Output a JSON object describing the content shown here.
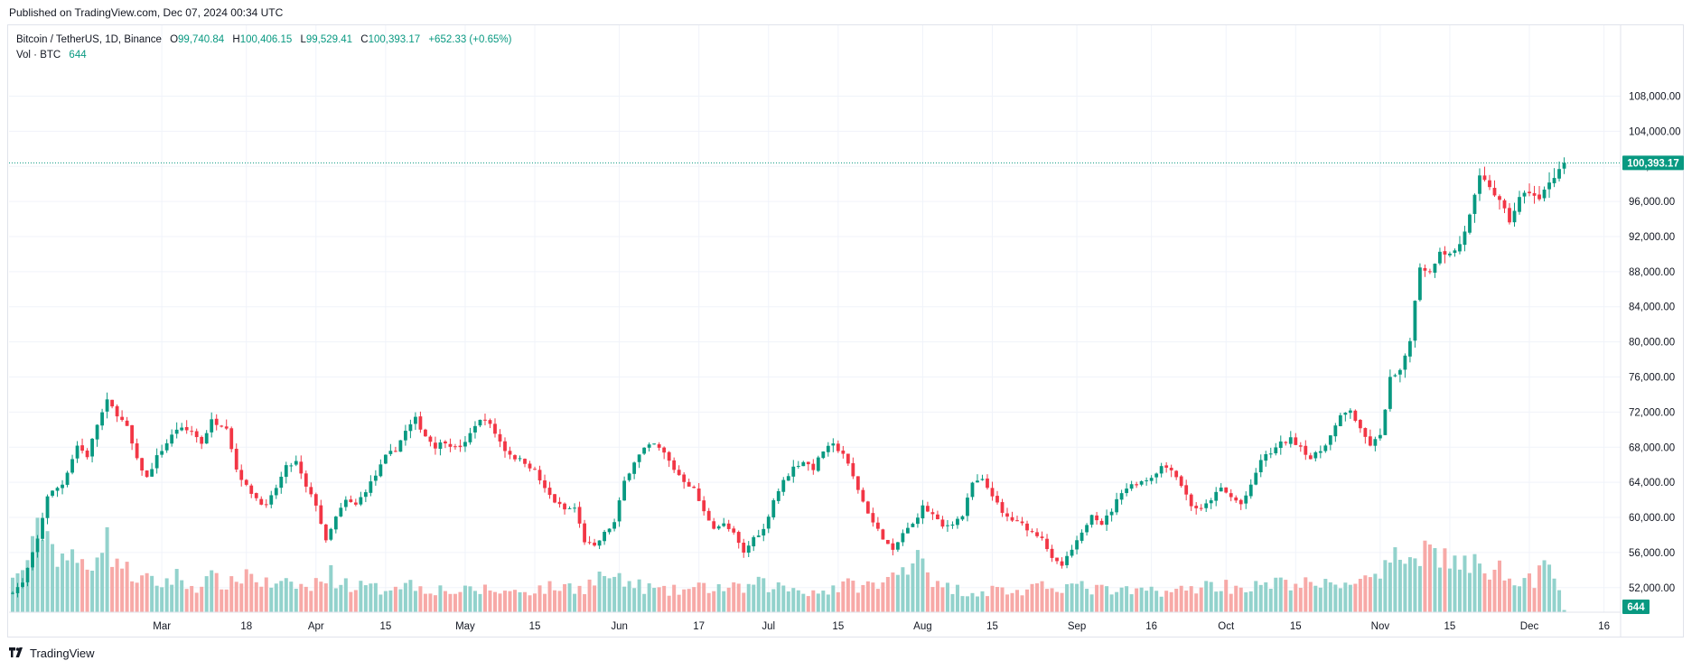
{
  "header": {
    "published": "Published on TradingView.com, Dec 07, 2024 00:34 UTC"
  },
  "legend": {
    "symbol": "Bitcoin / TetherUS, 1D, Binance",
    "open_label": "O",
    "open": "99,740.84",
    "high_label": "H",
    "high": "100,406.15",
    "low_label": "L",
    "low": "99,529.41",
    "close_label": "C",
    "close": "100,393.17",
    "change": "+652.33 (+0.65%)",
    "vol_label": "Vol · BTC",
    "vol": "644"
  },
  "footer": {
    "logo_icon": "tradingview-logo-icon",
    "brand": "TradingView"
  },
  "colors": {
    "up": "#089981",
    "down": "#f23645",
    "vol_up": "#92d2cc",
    "vol_down": "#f7a9a7",
    "grid": "#f0f3fa",
    "axis_text": "#131722"
  },
  "chart_data": {
    "type": "candlestick",
    "symbol": "BTCUSDT",
    "interval": "1D",
    "price_axis": {
      "ticks": [
        52000,
        56000,
        60000,
        64000,
        68000,
        72000,
        76000,
        80000,
        84000,
        88000,
        92000,
        96000,
        100000,
        104000,
        108000
      ],
      "tick_labels": [
        "52,000.00",
        "56,000.00",
        "60,000.00",
        "64,000.00",
        "68,000.00",
        "72,000.00",
        "76,000.00",
        "80,000.00",
        "84,000.00",
        "88,000.00",
        "92,000.00",
        "96,000.00",
        "100,000.00",
        "104,000.00",
        "108,000.00"
      ],
      "range": [
        49200,
        109600
      ]
    },
    "last_price": 100393.17,
    "last_price_label": "100,393.17",
    "last_volume_label": "644",
    "time_axis": {
      "labels": [
        {
          "text": "Mar",
          "day": 30
        },
        {
          "text": "18",
          "day": 47
        },
        {
          "text": "Apr",
          "day": 61
        },
        {
          "text": "15",
          "day": 75
        },
        {
          "text": "May",
          "day": 91
        },
        {
          "text": "15",
          "day": 105
        },
        {
          "text": "Jun",
          "day": 122
        },
        {
          "text": "17",
          "day": 138
        },
        {
          "text": "Jul",
          "day": 152
        },
        {
          "text": "15",
          "day": 166
        },
        {
          "text": "Aug",
          "day": 183
        },
        {
          "text": "15",
          "day": 197
        },
        {
          "text": "Sep",
          "day": 214
        },
        {
          "text": "16",
          "day": 229
        },
        {
          "text": "Oct",
          "day": 244
        },
        {
          "text": "15",
          "day": 258
        },
        {
          "text": "Nov",
          "day": 275
        },
        {
          "text": "15",
          "day": 289
        },
        {
          "text": "Dec",
          "day": 305
        },
        {
          "text": "16",
          "day": 320
        }
      ]
    },
    "close_anchors": [
      [
        0,
        51600
      ],
      [
        2,
        52500
      ],
      [
        5,
        57500
      ],
      [
        7,
        62500
      ],
      [
        10,
        63800
      ],
      [
        13,
        68200
      ],
      [
        15,
        67000
      ],
      [
        17,
        70600
      ],
      [
        19,
        73200
      ],
      [
        21,
        71800
      ],
      [
        23,
        70200
      ],
      [
        25,
        66500
      ],
      [
        27,
        64500
      ],
      [
        29,
        66900
      ],
      [
        31,
        68500
      ],
      [
        33,
        70100
      ],
      [
        36,
        69800
      ],
      [
        38,
        68500
      ],
      [
        40,
        71000
      ],
      [
        43,
        70400
      ],
      [
        45,
        65500
      ],
      [
        47,
        63500
      ],
      [
        49,
        62200
      ],
      [
        51,
        61200
      ],
      [
        53,
        63400
      ],
      [
        55,
        65700
      ],
      [
        57,
        66300
      ],
      [
        59,
        63400
      ],
      [
        61,
        61500
      ],
      [
        63,
        57200
      ],
      [
        65,
        60000
      ],
      [
        67,
        61900
      ],
      [
        69,
        61400
      ],
      [
        71,
        63100
      ],
      [
        73,
        64800
      ],
      [
        75,
        66900
      ],
      [
        77,
        67800
      ],
      [
        79,
        69800
      ],
      [
        81,
        71200
      ],
      [
        83,
        69300
      ],
      [
        85,
        68100
      ],
      [
        87,
        68700
      ],
      [
        89,
        67900
      ],
      [
        91,
        68400
      ],
      [
        93,
        70600
      ],
      [
        95,
        71300
      ],
      [
        97,
        69600
      ],
      [
        99,
        67700
      ],
      [
        101,
        66800
      ],
      [
        103,
        66300
      ],
      [
        105,
        65300
      ],
      [
        107,
        63200
      ],
      [
        109,
        61800
      ],
      [
        111,
        60900
      ],
      [
        113,
        61100
      ],
      [
        115,
        57300
      ],
      [
        117,
        56600
      ],
      [
        119,
        58200
      ],
      [
        121,
        59400
      ],
      [
        123,
        64100
      ],
      [
        125,
        66400
      ],
      [
        127,
        67800
      ],
      [
        129,
        68300
      ],
      [
        131,
        67300
      ],
      [
        133,
        65500
      ],
      [
        135,
        64200
      ],
      [
        137,
        63200
      ],
      [
        139,
        60600
      ],
      [
        141,
        58900
      ],
      [
        143,
        59200
      ],
      [
        145,
        58100
      ],
      [
        147,
        55900
      ],
      [
        149,
        57700
      ],
      [
        151,
        58600
      ],
      [
        153,
        62000
      ],
      [
        155,
        64100
      ],
      [
        157,
        65700
      ],
      [
        159,
        66400
      ],
      [
        161,
        65600
      ],
      [
        163,
        67600
      ],
      [
        165,
        68200
      ],
      [
        167,
        67300
      ],
      [
        169,
        64600
      ],
      [
        171,
        61800
      ],
      [
        173,
        59400
      ],
      [
        175,
        57700
      ],
      [
        177,
        56100
      ],
      [
        179,
        58200
      ],
      [
        181,
        59200
      ],
      [
        183,
        61200
      ],
      [
        185,
        60300
      ],
      [
        187,
        58900
      ],
      [
        189,
        59400
      ],
      [
        191,
        60200
      ],
      [
        193,
        63900
      ],
      [
        195,
        64200
      ],
      [
        197,
        62600
      ],
      [
        199,
        60400
      ],
      [
        201,
        59700
      ],
      [
        203,
        59200
      ],
      [
        205,
        58300
      ],
      [
        207,
        57800
      ],
      [
        209,
        55200
      ],
      [
        211,
        54500
      ],
      [
        213,
        56300
      ],
      [
        215,
        58100
      ],
      [
        217,
        60500
      ],
      [
        219,
        59300
      ],
      [
        221,
        60800
      ],
      [
        223,
        63000
      ],
      [
        225,
        63700
      ],
      [
        227,
        64100
      ],
      [
        229,
        64600
      ],
      [
        231,
        65800
      ],
      [
        233,
        65600
      ],
      [
        235,
        63700
      ],
      [
        237,
        61400
      ],
      [
        239,
        60800
      ],
      [
        241,
        62100
      ],
      [
        243,
        63300
      ],
      [
        245,
        62300
      ],
      [
        247,
        61500
      ],
      [
        249,
        63500
      ],
      [
        251,
        66600
      ],
      [
        253,
        67400
      ],
      [
        255,
        68400
      ],
      [
        257,
        68900
      ],
      [
        259,
        68100
      ],
      [
        261,
        66700
      ],
      [
        263,
        67600
      ],
      [
        265,
        69300
      ],
      [
        267,
        71400
      ],
      [
        269,
        72300
      ],
      [
        271,
        69900
      ],
      [
        273,
        68300
      ],
      [
        275,
        69200
      ],
      [
        277,
        75800
      ],
      [
        279,
        76500
      ],
      [
        281,
        80400
      ],
      [
        283,
        88700
      ],
      [
        285,
        87900
      ],
      [
        287,
        90500
      ],
      [
        289,
        89900
      ],
      [
        291,
        91100
      ],
      [
        293,
        94300
      ],
      [
        295,
        98600
      ],
      [
        297,
        97800
      ],
      [
        299,
        95900
      ],
      [
        301,
        93800
      ],
      [
        303,
        96300
      ],
      [
        305,
        97200
      ],
      [
        307,
        96100
      ],
      [
        309,
        98300
      ],
      [
        311,
        99700
      ],
      [
        312,
        100393
      ]
    ],
    "volume_anchors": [
      [
        0,
        1.2
      ],
      [
        4,
        2.4
      ],
      [
        6,
        3.6
      ],
      [
        8,
        2.6
      ],
      [
        12,
        2.0
      ],
      [
        15,
        1.8
      ],
      [
        18,
        3.0
      ],
      [
        20,
        2.4
      ],
      [
        23,
        1.6
      ],
      [
        26,
        1.3
      ],
      [
        29,
        1.1
      ],
      [
        33,
        1.4
      ],
      [
        36,
        1.0
      ],
      [
        40,
        1.3
      ],
      [
        44,
        1.1
      ],
      [
        47,
        1.6
      ],
      [
        50,
        1.2
      ],
      [
        53,
        1.0
      ],
      [
        57,
        1.1
      ],
      [
        60,
        0.9
      ],
      [
        63,
        1.6
      ],
      [
        66,
        1.2
      ],
      [
        70,
        1.0
      ],
      [
        74,
        0.9
      ],
      [
        78,
        1.2
      ],
      [
        82,
        1.0
      ],
      [
        86,
        0.9
      ],
      [
        90,
        0.8
      ],
      [
        95,
        0.9
      ],
      [
        100,
        0.8
      ],
      [
        105,
        0.9
      ],
      [
        110,
        1.0
      ],
      [
        115,
        1.0
      ],
      [
        119,
        1.5
      ],
      [
        122,
        1.2
      ],
      [
        127,
        1.0
      ],
      [
        131,
        0.8
      ],
      [
        136,
        0.9
      ],
      [
        141,
        1.0
      ],
      [
        146,
        0.9
      ],
      [
        150,
        1.1
      ],
      [
        154,
        1.0
      ],
      [
        158,
        0.9
      ],
      [
        162,
        0.8
      ],
      [
        166,
        1.0
      ],
      [
        170,
        1.1
      ],
      [
        174,
        1.0
      ],
      [
        178,
        1.5
      ],
      [
        182,
        2.6
      ],
      [
        186,
        1.0
      ],
      [
        190,
        0.9
      ],
      [
        194,
        0.8
      ],
      [
        198,
        0.9
      ],
      [
        202,
        0.8
      ],
      [
        206,
        0.9
      ],
      [
        210,
        1.1
      ],
      [
        214,
        1.0
      ],
      [
        218,
        0.9
      ],
      [
        222,
        0.8
      ],
      [
        226,
        0.8
      ],
      [
        230,
        0.9
      ],
      [
        234,
        0.8
      ],
      [
        238,
        1.0
      ],
      [
        242,
        1.1
      ],
      [
        246,
        1.0
      ],
      [
        250,
        1.0
      ],
      [
        254,
        1.1
      ],
      [
        258,
        1.2
      ],
      [
        262,
        1.0
      ],
      [
        266,
        1.1
      ],
      [
        270,
        1.3
      ],
      [
        274,
        1.2
      ],
      [
        278,
        2.0
      ],
      [
        282,
        2.6
      ],
      [
        286,
        2.4
      ],
      [
        290,
        2.0
      ],
      [
        294,
        1.8
      ],
      [
        298,
        1.7
      ],
      [
        302,
        1.5
      ],
      [
        306,
        1.3
      ],
      [
        310,
        1.9
      ],
      [
        311,
        1.2
      ],
      [
        312,
        0.1
      ]
    ]
  }
}
